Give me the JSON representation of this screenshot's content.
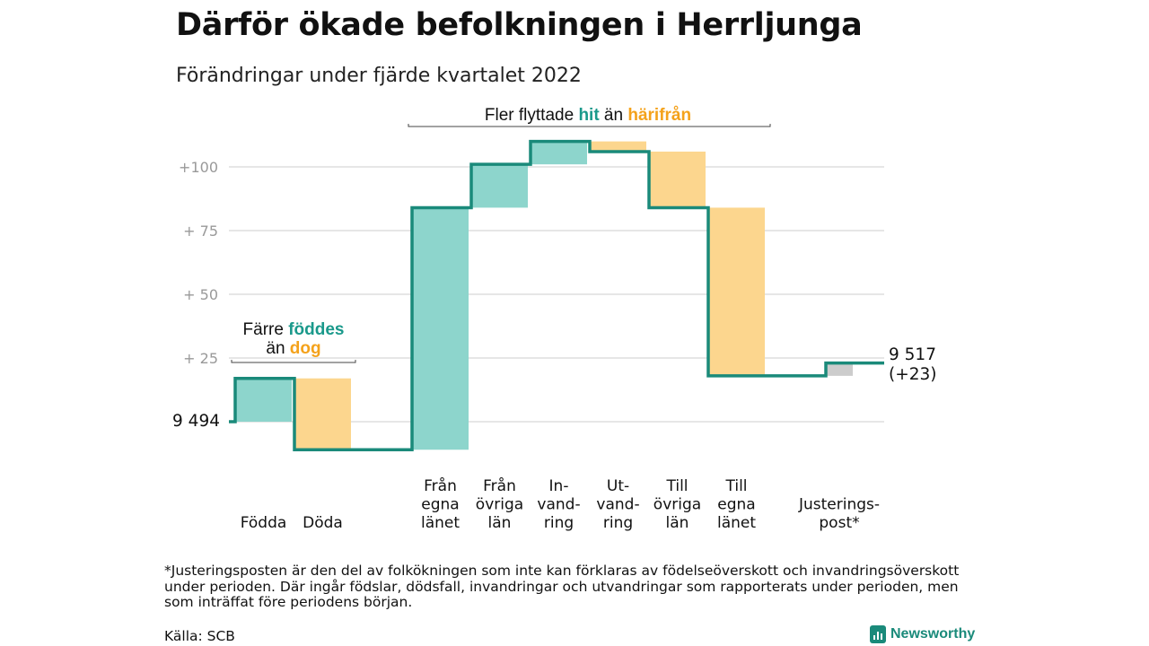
{
  "title": "Därför ökade befolkningen i Herrljunga",
  "subtitle": "Förändringar under fjärde kvartalet 2022",
  "footnote": "*Justeringsposten är den del av folkökningen som inte kan förklaras av födelseöverskott och invandringsöverskott under perioden. Där ingår födslar, dödsfall, invandringar och utvandringar som rapporterats under perioden, men som inträffat före periodens början.",
  "source": "Källa: SCB",
  "logo": {
    "name": "Newsworthy",
    "icon": "bar-chart-icon"
  },
  "colors": {
    "positive": "#8dd5cc",
    "negative": "#fcd68e",
    "adjustment": "#cccccc",
    "line": "#1a8a7a",
    "accent_teal": "#1a998b",
    "accent_orange": "#f4a21b",
    "grid": "#dddddd",
    "tick": "#999999"
  },
  "chart_data": {
    "type": "waterfall",
    "start_label": "9 494",
    "start_value": 0,
    "end_label_value": "9 517",
    "end_label_change": "(+23)",
    "yticks": [
      {
        "value": 100,
        "label": "+100"
      },
      {
        "value": 75,
        "label": "+ 75"
      },
      {
        "value": 50,
        "label": "+ 50"
      },
      {
        "value": 25,
        "label": "+ 25"
      }
    ],
    "ylim": [
      -12,
      115
    ],
    "steps": [
      {
        "label": [
          "Födda"
        ],
        "value": 17,
        "group": 0,
        "kind": "positive"
      },
      {
        "label": [
          "Döda"
        ],
        "value": -28,
        "group": 0,
        "kind": "negative"
      },
      {
        "label": [
          "Från",
          "egna",
          "länet"
        ],
        "value": 95,
        "group": 1,
        "kind": "positive"
      },
      {
        "label": [
          "Från",
          "övriga",
          "län"
        ],
        "value": 17,
        "group": 1,
        "kind": "positive"
      },
      {
        "label": [
          "In-",
          "vand-",
          "ring"
        ],
        "value": 9,
        "group": 1,
        "kind": "positive"
      },
      {
        "label": [
          "Ut-",
          "vand-",
          "ring"
        ],
        "value": -4,
        "group": 1,
        "kind": "negative"
      },
      {
        "label": [
          "Till",
          "övriga",
          "län"
        ],
        "value": -22,
        "group": 1,
        "kind": "negative"
      },
      {
        "label": [
          "Till",
          "egna",
          "länet"
        ],
        "value": -66,
        "group": 1,
        "kind": "negative"
      },
      {
        "label": [
          "Justerings-",
          "post*"
        ],
        "value": 5,
        "group": 2,
        "kind": "adjustment",
        "shaded_range": [
          18,
          23
        ]
      }
    ],
    "annotations": [
      {
        "id": "births",
        "parts": [
          {
            "line": 0,
            "text": "Färre ",
            "color": ""
          },
          {
            "line": 0,
            "text": "föddes",
            "color": "teal"
          },
          {
            "line": 1,
            "text": "än ",
            "color": ""
          },
          {
            "line": 1,
            "text": "dog",
            "color": "orange"
          }
        ],
        "spans": [
          0,
          1
        ]
      },
      {
        "id": "moves",
        "parts": [
          {
            "line": 0,
            "text": "Fler flyttade ",
            "color": ""
          },
          {
            "line": 0,
            "text": "hit",
            "color": "teal"
          },
          {
            "line": 0,
            "text": " än ",
            "color": ""
          },
          {
            "line": 0,
            "text": "härifrån",
            "color": "orange"
          }
        ],
        "spans": [
          2,
          7
        ]
      }
    ]
  }
}
